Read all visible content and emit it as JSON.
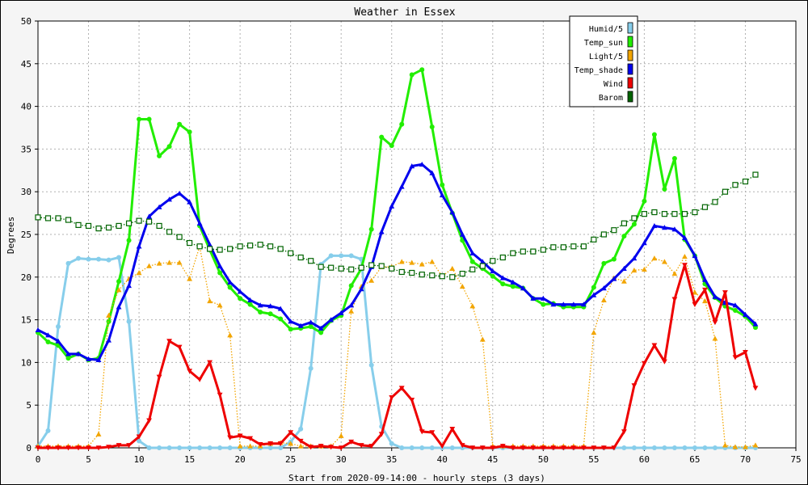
{
  "chart_data": {
    "type": "line",
    "title": "Weather in Essex",
    "xlabel": "Start from 2020-09-14:00 - hourly steps (3 days)",
    "ylabel": "Degrees",
    "xlim": [
      0,
      75
    ],
    "ylim": [
      0,
      50
    ],
    "x_ticks": [
      0,
      5,
      10,
      15,
      20,
      25,
      30,
      35,
      40,
      45,
      50,
      55,
      60,
      65,
      70,
      75
    ],
    "y_ticks": [
      0,
      5,
      10,
      15,
      20,
      25,
      30,
      35,
      40,
      45,
      50
    ],
    "grid": true,
    "legend_position": "top-right",
    "x": [
      0,
      1,
      2,
      3,
      4,
      5,
      6,
      7,
      8,
      9,
      10,
      11,
      12,
      13,
      14,
      15,
      16,
      17,
      18,
      19,
      20,
      21,
      22,
      23,
      24,
      25,
      26,
      27,
      28,
      29,
      30,
      31,
      32,
      33,
      34,
      35,
      36,
      37,
      38,
      39,
      40,
      41,
      42,
      43,
      44,
      45,
      46,
      47,
      48,
      49,
      50,
      51,
      52,
      53,
      54,
      55,
      56,
      57,
      58,
      59,
      60,
      61,
      62,
      63,
      64,
      65,
      66,
      67,
      68,
      69,
      70,
      71
    ],
    "series": [
      {
        "name": "Humid/5",
        "color": "#87ceeb",
        "marker": "circle",
        "style": "solid",
        "values": [
          0.2,
          2,
          14.2,
          21.6,
          22.2,
          22.1,
          22.1,
          22,
          22.3,
          14.8,
          0.8,
          0,
          0,
          0,
          0,
          0,
          0,
          0,
          0,
          0,
          0,
          0,
          0,
          0,
          0,
          0.7,
          2.2,
          9.3,
          21.5,
          22.5,
          22.5,
          22.5,
          22.1,
          9.7,
          2.5,
          0.5,
          0,
          0,
          0,
          0,
          0,
          0,
          0,
          0,
          0,
          0,
          0,
          0,
          0,
          0,
          0,
          0,
          0,
          0,
          0,
          0,
          0,
          0,
          0,
          0,
          0,
          0,
          0,
          0,
          0,
          0,
          0,
          0,
          0,
          0,
          0,
          0
        ]
      },
      {
        "name": "Temp_sun",
        "color": "#22ee00",
        "marker": "circle",
        "style": "solid",
        "values": [
          13.5,
          12.4,
          12,
          10.5,
          11,
          10.3,
          10.5,
          14.8,
          19.5,
          24.3,
          38.5,
          38.5,
          34.2,
          35.3,
          37.9,
          37,
          26,
          23.2,
          20.5,
          18.8,
          17.5,
          16.8,
          15.9,
          15.7,
          15.1,
          13.9,
          14,
          14.2,
          13.5,
          14.9,
          15.5,
          19,
          21,
          25.6,
          36.4,
          35.4,
          37.9,
          43.7,
          44.3,
          37.6,
          30.8,
          27.5,
          24.3,
          21.8,
          21,
          20.1,
          19.2,
          18.9,
          18.7,
          17.5,
          16.8,
          16.9,
          16.5,
          16.5,
          16.5,
          18.8,
          21.6,
          22.1,
          24.8,
          26.2,
          28.9,
          36.7,
          30.3,
          33.9,
          24.4,
          22.5,
          19.2,
          17.6,
          16.6,
          16.1,
          15.4,
          14.1
        ]
      },
      {
        "name": "Light/5",
        "color": "#f2a500",
        "marker": "triangle",
        "style": "dotted",
        "values": [
          0.2,
          0.2,
          0.2,
          0.2,
          0.2,
          0.2,
          1.6,
          15.5,
          18.5,
          19.8,
          20.5,
          21.3,
          21.6,
          21.7,
          21.7,
          19.8,
          23.6,
          17.2,
          16.7,
          13.2,
          0.2,
          0.2,
          0.2,
          0.5,
          0.6,
          0.5,
          0.2,
          0.2,
          0.2,
          0.2,
          1.4,
          16,
          18.9,
          19.6,
          21.2,
          21.2,
          21.8,
          21.7,
          21.5,
          21.8,
          20.1,
          21,
          18.9,
          16.6,
          12.7,
          0.2,
          0.2,
          0.2,
          0.2,
          0.2,
          0.2,
          0.2,
          0.2,
          0.2,
          0.2,
          13.5,
          17.3,
          19.9,
          19.5,
          20.8,
          20.9,
          22.2,
          21.8,
          20.4,
          22.4,
          18.2,
          17.2,
          12.8,
          0.3,
          0.1,
          0.1,
          0.3
        ]
      },
      {
        "name": "Temp_shade",
        "color": "#0000ee",
        "marker": "triangle",
        "style": "solid",
        "values": [
          13.8,
          13.2,
          12.5,
          11,
          11,
          10.4,
          10.3,
          12.6,
          16.5,
          19,
          23.6,
          27.1,
          28.2,
          29.1,
          29.8,
          28.8,
          26.3,
          23.8,
          21.3,
          19.4,
          18.3,
          17.3,
          16.7,
          16.6,
          16.3,
          14.8,
          14.3,
          14.7,
          14,
          15,
          15.8,
          16.7,
          18.6,
          21.2,
          25.3,
          28.3,
          30.6,
          33,
          33.2,
          32.2,
          29.6,
          27.6,
          25,
          22.8,
          21.8,
          20.7,
          19.9,
          19.4,
          18.7,
          17.5,
          17.5,
          16.8,
          16.8,
          16.8,
          16.8,
          17.9,
          18.7,
          19.8,
          21,
          22.2,
          24,
          26,
          25.8,
          25.6,
          24.6,
          22.5,
          19.7,
          17.7,
          17,
          16.7,
          15.6,
          14.5
        ]
      },
      {
        "name": "Wind",
        "color": "#ee0000",
        "marker": "inverted-triangle",
        "style": "solid",
        "values": [
          0,
          0,
          0,
          0,
          0,
          0,
          0,
          0.1,
          0.3,
          0.3,
          1.3,
          3.2,
          8.3,
          12.5,
          11.8,
          9,
          8,
          10,
          6.2,
          1.2,
          1.4,
          1.1,
          0.4,
          0.5,
          0.5,
          1.8,
          0.8,
          0.1,
          0.2,
          0.1,
          0,
          0.7,
          0.3,
          0.2,
          1.6,
          5.9,
          7,
          5.6,
          1.9,
          1.8,
          0.2,
          2.2,
          0.3,
          0,
          0,
          0,
          0.2,
          0,
          0,
          0,
          0,
          0,
          0,
          0,
          0,
          0,
          0,
          0,
          1.9,
          7.3,
          9.9,
          12,
          10.1,
          17.4,
          21.4,
          16.8,
          18.5,
          14.7,
          18.2,
          10.6,
          11.2,
          7
        ]
      },
      {
        "name": "Barom",
        "color": "#006400",
        "marker": "square",
        "style": "dotted",
        "values": [
          27,
          26.9,
          26.9,
          26.7,
          26.1,
          26,
          25.7,
          25.8,
          26,
          26.3,
          26.6,
          26.5,
          26,
          25.3,
          24.7,
          24,
          23.6,
          23.3,
          23.2,
          23.3,
          23.6,
          23.7,
          23.8,
          23.6,
          23.3,
          22.8,
          22.3,
          21.9,
          21.2,
          21.1,
          21,
          20.9,
          21.1,
          21.4,
          21.3,
          21,
          20.6,
          20.5,
          20.3,
          20.2,
          20.1,
          20,
          20.4,
          20.9,
          21.3,
          21.9,
          22.3,
          22.8,
          23,
          23,
          23.2,
          23.5,
          23.5,
          23.6,
          23.6,
          24.4,
          25,
          25.5,
          26.3,
          26.9,
          27.4,
          27.6,
          27.4,
          27.4,
          27.4,
          27.6,
          28.2,
          28.8,
          30,
          30.8,
          31.2,
          32
        ]
      }
    ]
  }
}
